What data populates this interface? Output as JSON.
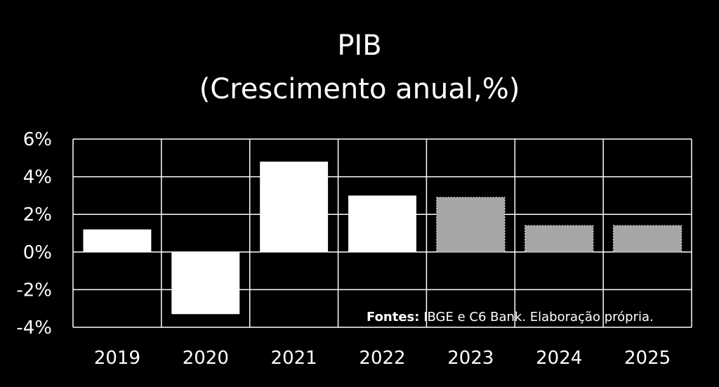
{
  "chart_data": {
    "type": "bar",
    "title": "PIB",
    "subtitle": "(Crescimento anual,%)",
    "categories": [
      "2019",
      "2020",
      "2021",
      "2022",
      "2023",
      "2024",
      "2025"
    ],
    "values": [
      1.2,
      -3.3,
      4.8,
      3.0,
      2.9,
      1.4,
      1.4
    ],
    "projected": [
      false,
      false,
      false,
      false,
      true,
      true,
      true
    ],
    "ylim": [
      -4,
      6
    ],
    "yticks": [
      6,
      4,
      2,
      0,
      -2,
      -4
    ],
    "ytick_labels": [
      "6%",
      "4%",
      "2%",
      "0%",
      "-2%",
      "-4%"
    ],
    "grid": true,
    "xlabel": "",
    "ylabel": ""
  },
  "source": {
    "label": "Fontes:",
    "text": " IBGE e  C6 Bank. Elaboração própria."
  },
  "colors": {
    "background": "#000000",
    "actual_bar": "#ffffff",
    "projected_bar": "#a6a6a6",
    "grid": "#ffffff",
    "text": "#ffffff"
  }
}
